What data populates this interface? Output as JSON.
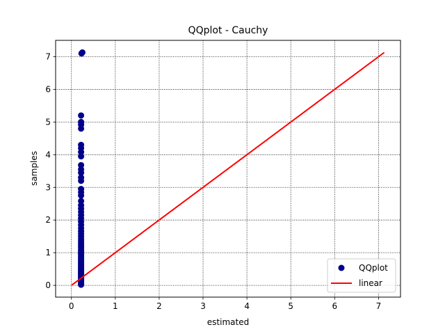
{
  "chart_data": {
    "type": "scatter",
    "title": "QQplot - Cauchy",
    "xlabel": "estimated",
    "ylabel": "samples",
    "xlim": [
      -0.36,
      7.5
    ],
    "ylim": [
      -0.36,
      7.5
    ],
    "xticks": [
      0,
      1,
      2,
      3,
      4,
      5,
      6,
      7
    ],
    "yticks": [
      0,
      1,
      2,
      3,
      4,
      5,
      6,
      7
    ],
    "grid": true,
    "legend_position": "bottom-right",
    "series": [
      {
        "name": "QQplot",
        "kind": "scatter",
        "color": "#00008b",
        "points": [
          [
            0.22,
            0.02
          ],
          [
            0.22,
            0.05
          ],
          [
            0.22,
            0.08
          ],
          [
            0.22,
            0.11
          ],
          [
            0.22,
            0.14
          ],
          [
            0.22,
            0.17
          ],
          [
            0.22,
            0.2
          ],
          [
            0.22,
            0.23
          ],
          [
            0.22,
            0.26
          ],
          [
            0.22,
            0.29
          ],
          [
            0.22,
            0.32
          ],
          [
            0.22,
            0.35
          ],
          [
            0.22,
            0.38
          ],
          [
            0.22,
            0.41
          ],
          [
            0.22,
            0.44
          ],
          [
            0.22,
            0.47
          ],
          [
            0.22,
            0.5
          ],
          [
            0.22,
            0.53
          ],
          [
            0.22,
            0.56
          ],
          [
            0.22,
            0.6
          ],
          [
            0.22,
            0.64
          ],
          [
            0.22,
            0.68
          ],
          [
            0.22,
            0.72
          ],
          [
            0.22,
            0.76
          ],
          [
            0.22,
            0.8
          ],
          [
            0.22,
            0.85
          ],
          [
            0.22,
            0.9
          ],
          [
            0.22,
            0.95
          ],
          [
            0.22,
            1.0
          ],
          [
            0.22,
            1.05
          ],
          [
            0.22,
            1.1
          ],
          [
            0.22,
            1.16
          ],
          [
            0.22,
            1.22
          ],
          [
            0.22,
            1.28
          ],
          [
            0.22,
            1.35
          ],
          [
            0.22,
            1.42
          ],
          [
            0.22,
            1.5
          ],
          [
            0.22,
            1.58
          ],
          [
            0.22,
            1.66
          ],
          [
            0.22,
            1.75
          ],
          [
            0.22,
            1.85
          ],
          [
            0.22,
            1.95
          ],
          [
            0.22,
            2.05
          ],
          [
            0.22,
            2.15
          ],
          [
            0.22,
            2.25
          ],
          [
            0.22,
            2.35
          ],
          [
            0.22,
            2.45
          ],
          [
            0.22,
            2.58
          ],
          [
            0.22,
            2.75
          ],
          [
            0.22,
            2.85
          ],
          [
            0.22,
            2.95
          ],
          [
            0.22,
            3.2
          ],
          [
            0.22,
            3.3
          ],
          [
            0.22,
            3.45
          ],
          [
            0.22,
            3.55
          ],
          [
            0.22,
            3.68
          ],
          [
            0.22,
            3.95
          ],
          [
            0.22,
            4.08
          ],
          [
            0.22,
            4.2
          ],
          [
            0.22,
            4.3
          ],
          [
            0.22,
            4.8
          ],
          [
            0.22,
            4.92
          ],
          [
            0.22,
            5.0
          ],
          [
            0.22,
            5.2
          ],
          [
            0.23,
            7.1
          ],
          [
            0.25,
            7.13
          ]
        ]
      },
      {
        "name": "linear",
        "kind": "line",
        "color": "#ff0000",
        "points": [
          [
            0,
            0
          ],
          [
            7.13,
            7.13
          ]
        ]
      }
    ]
  }
}
